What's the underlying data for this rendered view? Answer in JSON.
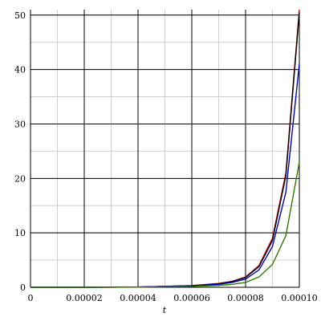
{
  "chart_data": {
    "type": "line",
    "xlabel": "t",
    "ylabel": "",
    "title": "",
    "xlim": [
      0,
      0.0001
    ],
    "ylim": [
      0,
      51
    ],
    "x_ticks": [
      0,
      2e-05,
      4e-05,
      6e-05,
      8e-05,
      0.0001
    ],
    "x_tick_labels": [
      "0",
      "0.00002",
      "0.00004",
      "0.00006",
      "0.00008",
      "0.00010"
    ],
    "y_ticks": [
      0,
      10,
      20,
      30,
      40,
      50
    ],
    "y_tick_labels": [
      "0",
      "10",
      "20",
      "30",
      "40",
      "50"
    ],
    "x_minor_step": 1e-05,
    "y_minor_step": 5,
    "grid": true,
    "legend": "none",
    "series": [
      {
        "color": "#cc0000",
        "x": [
          0,
          2e-05,
          4e-05,
          6e-05,
          7e-05,
          7.5e-05,
          8e-05,
          8.5e-05,
          9e-05,
          9.5e-05,
          0.0001
        ],
        "y": [
          0,
          0,
          0.05,
          0.3,
          0.7,
          1.1,
          1.9,
          4.0,
          9.0,
          21.0,
          51.0
        ]
      },
      {
        "color": "#000000",
        "x": [
          0,
          2e-05,
          4e-05,
          6e-05,
          7e-05,
          7.5e-05,
          8e-05,
          8.5e-05,
          9e-05,
          9.5e-05,
          0.0001
        ],
        "y": [
          0,
          0,
          0.05,
          0.3,
          0.65,
          1.05,
          1.8,
          3.8,
          8.6,
          20.5,
          50.5
        ]
      },
      {
        "color": "#0000cc",
        "x": [
          0,
          2e-05,
          4e-05,
          6e-05,
          7e-05,
          7.5e-05,
          8e-05,
          8.5e-05,
          9e-05,
          9.5e-05,
          0.0001
        ],
        "y": [
          0,
          0,
          0.04,
          0.25,
          0.55,
          0.9,
          1.5,
          3.2,
          7.5,
          17.5,
          41.0
        ]
      },
      {
        "color": "#2e7d00",
        "x": [
          0,
          2e-05,
          4e-05,
          6e-05,
          7e-05,
          7.5e-05,
          8e-05,
          8.5e-05,
          9e-05,
          9.5e-05,
          0.0001
        ],
        "y": [
          0,
          0,
          0.02,
          0.15,
          0.35,
          0.55,
          0.9,
          1.9,
          4.2,
          9.5,
          23.0
        ]
      }
    ]
  }
}
